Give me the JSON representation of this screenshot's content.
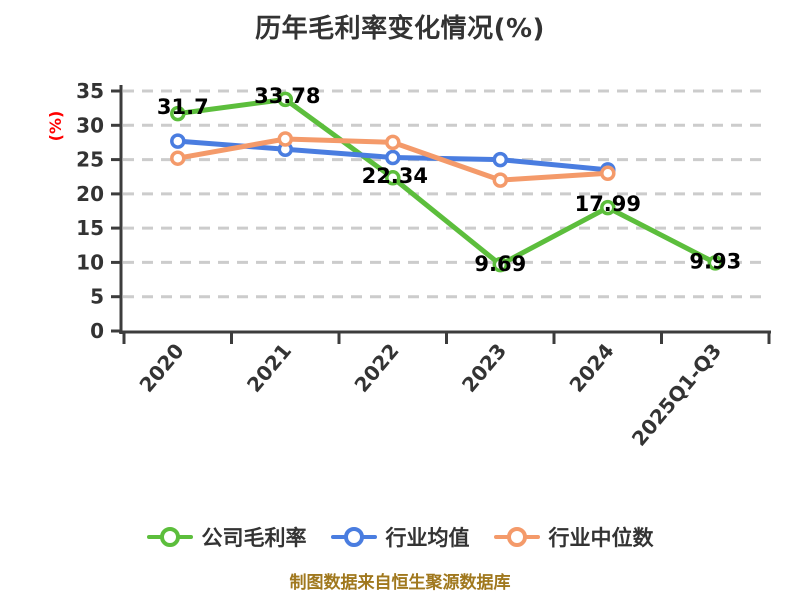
{
  "chart_data": {
    "type": "line",
    "title": "历年毛利率变化情况(%)",
    "ylabel": "(%)",
    "footer": "制图数据来自恒生聚源数据库",
    "categories": [
      "2020",
      "2021",
      "2022",
      "2023",
      "2024",
      "2025Q1-Q3"
    ],
    "series": [
      {
        "name": "公司毛利率",
        "color": "#5cbe3c",
        "values": [
          31.7,
          33.78,
          22.34,
          9.69,
          17.99,
          9.93
        ],
        "point_labels": [
          "31.7",
          "33.78",
          "22.34",
          "9.69",
          "17.99",
          "9.93"
        ],
        "show_labels": true
      },
      {
        "name": "行业均值",
        "color": "#4a7de0",
        "values": [
          27.7,
          26.5,
          25.3,
          25.0,
          23.5,
          null
        ],
        "show_labels": false
      },
      {
        "name": "行业中位数",
        "color": "#f49a6a",
        "values": [
          25.2,
          28.0,
          27.5,
          22.0,
          23.0,
          null
        ],
        "show_labels": false
      }
    ],
    "ylim": [
      0,
      35
    ],
    "ytick_step": 5,
    "yticks": [
      "0",
      "5",
      "10",
      "15",
      "20",
      "25",
      "30",
      "35"
    ],
    "grid": "dashed-horizontal",
    "legend_position": "bottom",
    "colors": {
      "axis": "#3c3c3c",
      "grid": "#cccccc",
      "tick_label": "#333333",
      "data_label": "#000000",
      "title": "#333333",
      "ylabel": "#ff0000",
      "footer": "#a0781e",
      "legend_text": "#333333",
      "marker_fill": "#ffffff",
      "background": "#ffffff"
    }
  }
}
